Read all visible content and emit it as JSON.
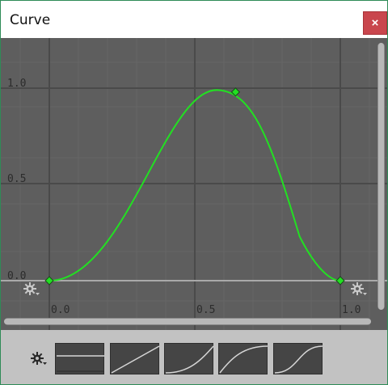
{
  "window": {
    "title": "Curve",
    "close_label": "×"
  },
  "curve_editor": {
    "y_tick_labels": [
      "1.0",
      "0.5",
      "0.0"
    ],
    "x_tick_labels": [
      "0.0",
      "0.5",
      "1.0"
    ],
    "curve_color": "#22e022",
    "keyframes": [
      {
        "time": 0.0,
        "value": 0.0
      },
      {
        "time": 0.64,
        "value": 0.98
      },
      {
        "time": 1.0,
        "value": 0.0
      }
    ],
    "background_color": "#5e5e5e"
  },
  "presets": {
    "items": [
      {
        "name": "constant"
      },
      {
        "name": "linear"
      },
      {
        "name": "ease-in"
      },
      {
        "name": "ease-out"
      },
      {
        "name": "ease-in-out"
      }
    ]
  }
}
